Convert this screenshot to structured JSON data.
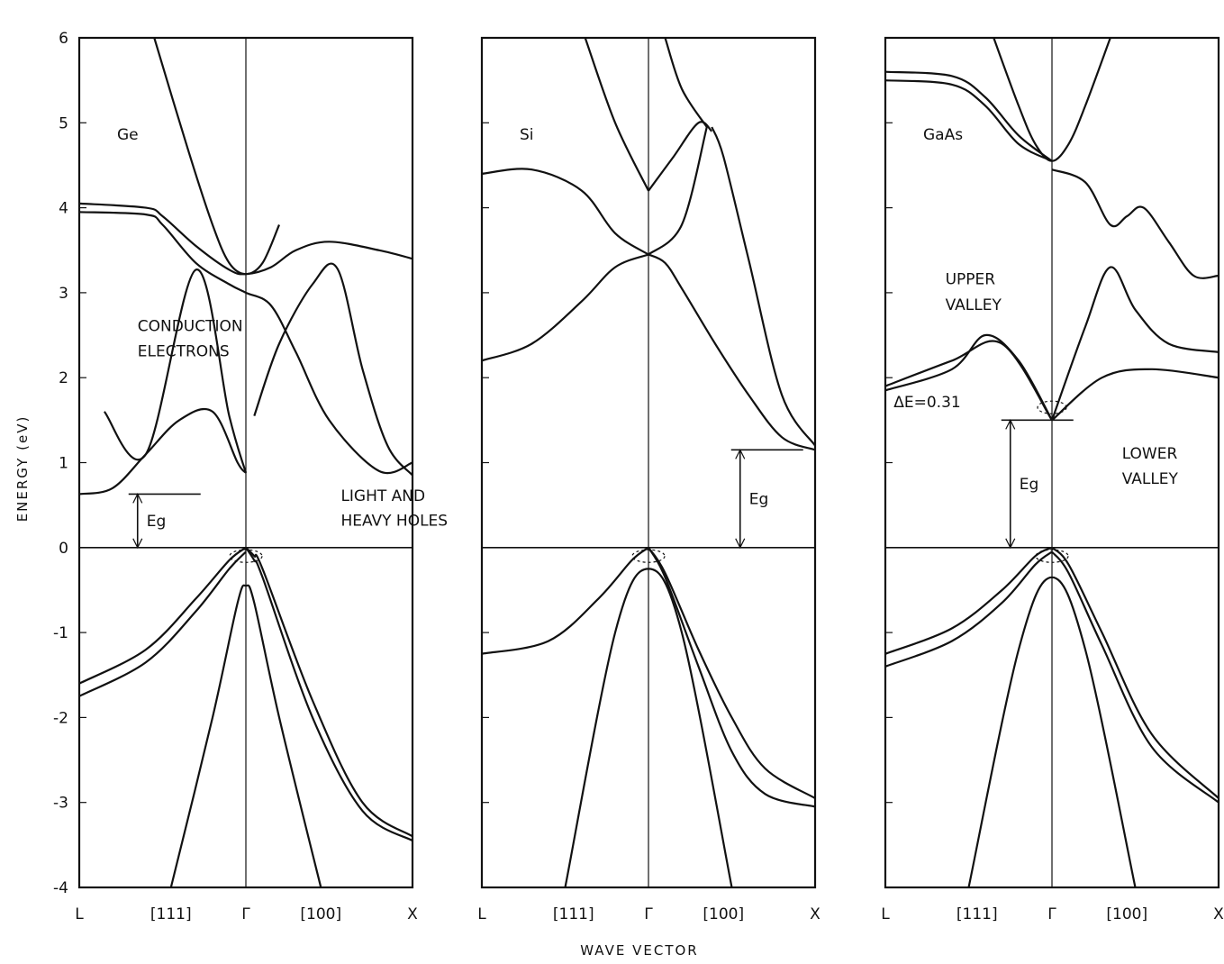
{
  "chart_data": {
    "type": "line",
    "title": "",
    "xlabel": "WAVE VECTOR",
    "ylabel": "ENERGY (eV)",
    "ylim": [
      -4,
      6
    ],
    "yticks": [
      "6",
      "5",
      "4",
      "3",
      "2",
      "1",
      "0",
      "-1",
      "-2",
      "-3",
      "-4"
    ],
    "xticks": [
      "L",
      "[111]",
      "Γ",
      "[100]",
      "X"
    ],
    "x_domain": [
      -1,
      1
    ],
    "grid": false,
    "panels": [
      {
        "material": "Ge",
        "label": "Ge",
        "band_gap_label": "Eg",
        "annotations": [
          {
            "text": "CONDUCTION",
            "x": -0.65,
            "y": 2.55
          },
          {
            "text": "ELECTRONS",
            "x": -0.65,
            "y": 2.25
          },
          {
            "text": "LIGHT  AND",
            "x": 0.57,
            "y": 0.55
          },
          {
            "text": "HEAVY  HOLES",
            "x": 0.57,
            "y": 0.26
          }
        ],
        "series": [
          {
            "x": [
              -1,
              -0.6,
              -0.5,
              -0.3,
              -0.1,
              0,
              0.15,
              0.3,
              0.5,
              0.8,
              1
            ],
            "y": [
              4.05,
              4.0,
              3.9,
              3.55,
              3.27,
              3.22,
              3.3,
              3.5,
              3.6,
              3.5,
              3.4
            ]
          },
          {
            "x": [
              -1,
              -0.6,
              -0.5,
              -0.3,
              -0.1,
              0,
              0.15,
              0.3,
              0.5,
              0.8,
              1
            ],
            "y": [
              3.95,
              3.92,
              3.8,
              3.35,
              3.1,
              3.0,
              2.85,
              2.3,
              1.5,
              0.9,
              1.0
            ]
          },
          {
            "x": [
              -0.55,
              -0.35,
              -0.2,
              -0.1,
              0,
              0.1,
              0.2
            ],
            "y": [
              6.0,
              4.7,
              3.8,
              3.35,
              3.22,
              3.35,
              3.8
            ]
          },
          {
            "x": [
              -0.85,
              -0.6,
              -0.3,
              -0.1,
              0
            ],
            "y": [
              1.6,
              1.1,
              3.27,
              1.55,
              0.88
            ]
          },
          {
            "x": [
              0.05,
              0.2,
              0.4,
              0.55,
              0.7,
              0.85,
              1
            ],
            "y": [
              1.55,
              2.4,
              3.1,
              3.28,
              2.1,
              1.2,
              0.85
            ]
          },
          {
            "x": [
              -1,
              -0.8,
              -0.6,
              -0.4,
              -0.2,
              -0.05,
              0
            ],
            "y": [
              0.63,
              0.7,
              1.1,
              1.5,
              1.6,
              1.0,
              0.88
            ]
          },
          {
            "x": [
              0,
              0.05,
              0.1,
              0.4,
              0.7,
              1
            ],
            "y": [
              0.0,
              -0.1,
              -0.25,
              -1.8,
              -3.0,
              -3.4
            ]
          },
          {
            "x": [
              0,
              0.05,
              0.1,
              0.4,
              0.7,
              1
            ],
            "y": [
              0.0,
              -0.15,
              -0.35,
              -2.0,
              -3.1,
              -3.45
            ]
          },
          {
            "x": [
              -1,
              -0.6,
              -0.3,
              -0.1,
              0
            ],
            "y": [
              -1.6,
              -1.2,
              -0.6,
              -0.15,
              0.0
            ]
          },
          {
            "x": [
              -1,
              -0.6,
              -0.3,
              -0.1,
              0
            ],
            "y": [
              -1.75,
              -1.35,
              -0.75,
              -0.25,
              -0.05
            ]
          },
          {
            "x": [
              -0.45,
              -0.2,
              -0.05,
              0,
              0.05,
              0.2,
              0.45
            ],
            "y": [
              -4.0,
              -2.0,
              -0.65,
              -0.45,
              -0.65,
              -2.0,
              -4.0
            ]
          }
        ]
      },
      {
        "material": "Si",
        "label": "Si",
        "band_gap_label": "Eg",
        "annotations": [],
        "series": [
          {
            "x": [
              -0.38,
              -0.2,
              0
            ],
            "y": [
              6.0,
              5.0,
              4.2
            ]
          },
          {
            "x": [
              0,
              0.15,
              0.3,
              0.38
            ],
            "y": [
              4.2,
              4.6,
              5.0,
              4.9
            ]
          },
          {
            "x": [
              0.1,
              0.2,
              0.35
            ],
            "y": [
              6.0,
              5.4,
              4.95
            ]
          },
          {
            "x": [
              -1,
              -0.7,
              -0.4,
              -0.2,
              0
            ],
            "y": [
              4.4,
              4.45,
              4.2,
              3.7,
              3.45
            ]
          },
          {
            "x": [
              0.38,
              0.45,
              0.6,
              0.8,
              1
            ],
            "y": [
              4.95,
              4.6,
              3.4,
              1.8,
              1.2
            ]
          },
          {
            "x": [
              0,
              0.2,
              0.35
            ],
            "y": [
              3.45,
              3.8,
              4.95
            ]
          },
          {
            "x": [
              -1,
              -0.7,
              -0.4,
              -0.2,
              0
            ],
            "y": [
              2.2,
              2.4,
              2.9,
              3.3,
              3.45
            ]
          },
          {
            "x": [
              0,
              0.1,
              0.2,
              0.4,
              0.6,
              0.8,
              1
            ],
            "y": [
              3.45,
              3.35,
              3.05,
              2.4,
              1.8,
              1.3,
              1.15
            ]
          },
          {
            "x": [
              -1,
              -0.6,
              -0.3,
              -0.1,
              0
            ],
            "y": [
              -1.25,
              -1.1,
              -0.6,
              -0.15,
              0.0
            ]
          },
          {
            "x": [
              0,
              0.1,
              0.3,
              0.5,
              0.7,
              1
            ],
            "y": [
              0.0,
              -0.3,
              -1.2,
              -2.0,
              -2.6,
              -2.95
            ]
          },
          {
            "x": [
              0,
              0.1,
              0.3,
              0.5,
              0.7,
              1
            ],
            "y": [
              0.0,
              -0.35,
              -1.4,
              -2.4,
              -2.9,
              -3.05
            ]
          },
          {
            "x": [
              -0.5,
              -0.2,
              0,
              0.2,
              0.5
            ],
            "y": [
              -4.0,
              -1.0,
              -0.25,
              -1.0,
              -4.0
            ]
          }
        ]
      },
      {
        "material": "GaAs",
        "label": "GaAs",
        "band_gap_label": "Eg",
        "annotations": [
          {
            "text": "UPPER",
            "x": -0.64,
            "y": 3.1
          },
          {
            "text": "VALLEY",
            "x": -0.64,
            "y": 2.8
          },
          {
            "text": "LOWER",
            "x": 0.42,
            "y": 1.05
          },
          {
            "text": "VALLEY",
            "x": 0.42,
            "y": 0.75
          },
          {
            "text": "ΔE=0.31",
            "x": -0.95,
            "y": 1.65
          }
        ],
        "series": [
          {
            "x": [
              -1,
              -0.6,
              -0.4,
              -0.2,
              0
            ],
            "y": [
              5.6,
              5.55,
              5.3,
              4.85,
              4.55
            ]
          },
          {
            "x": [
              -1,
              -0.6,
              -0.4,
              -0.2,
              0
            ],
            "y": [
              5.5,
              5.45,
              5.2,
              4.75,
              4.55
            ]
          },
          {
            "x": [
              -0.35,
              -0.2,
              -0.1,
              0,
              0.1,
              0.2,
              0.35
            ],
            "y": [
              6.0,
              5.2,
              4.75,
              4.55,
              4.75,
              5.2,
              6.0
            ]
          },
          {
            "x": [
              0,
              0.2,
              0.35,
              0.45,
              0.55,
              0.7,
              0.85,
              1
            ],
            "y": [
              4.45,
              4.3,
              3.8,
              3.9,
              4.0,
              3.6,
              3.2,
              3.2
            ]
          },
          {
            "x": [
              -1,
              -0.6,
              -0.4,
              -0.2,
              0
            ],
            "y": [
              1.85,
              2.1,
              2.5,
              2.2,
              1.5
            ]
          },
          {
            "x": [
              0,
              0.2,
              0.35,
              0.5,
              0.7,
              1
            ],
            "y": [
              1.5,
              2.6,
              3.3,
              2.8,
              2.4,
              2.3
            ]
          },
          {
            "x": [
              -1,
              -0.6,
              -0.3,
              0
            ],
            "y": [
              1.9,
              2.2,
              2.4,
              1.5
            ]
          },
          {
            "x": [
              0,
              0.3,
              0.6,
              1
            ],
            "y": [
              1.5,
              2.0,
              2.1,
              2.0
            ]
          },
          {
            "x": [
              -1,
              -0.6,
              -0.3,
              -0.1,
              0
            ],
            "y": [
              -1.25,
              -0.95,
              -0.5,
              -0.1,
              0.0
            ]
          },
          {
            "x": [
              -1,
              -0.6,
              -0.3,
              -0.1,
              0
            ],
            "y": [
              -1.4,
              -1.1,
              -0.65,
              -0.2,
              -0.05
            ]
          },
          {
            "x": [
              0,
              0.1,
              0.3,
              0.6,
              1
            ],
            "y": [
              0.0,
              -0.2,
              -1.0,
              -2.2,
              -2.95
            ]
          },
          {
            "x": [
              0,
              0.1,
              0.3,
              0.6,
              1
            ],
            "y": [
              -0.05,
              -0.3,
              -1.15,
              -2.35,
              -3.0
            ]
          },
          {
            "x": [
              -0.5,
              -0.2,
              0,
              0.2,
              0.5
            ],
            "y": [
              -4.0,
              -1.2,
              -0.35,
              -1.2,
              -4.0
            ]
          }
        ]
      }
    ]
  }
}
